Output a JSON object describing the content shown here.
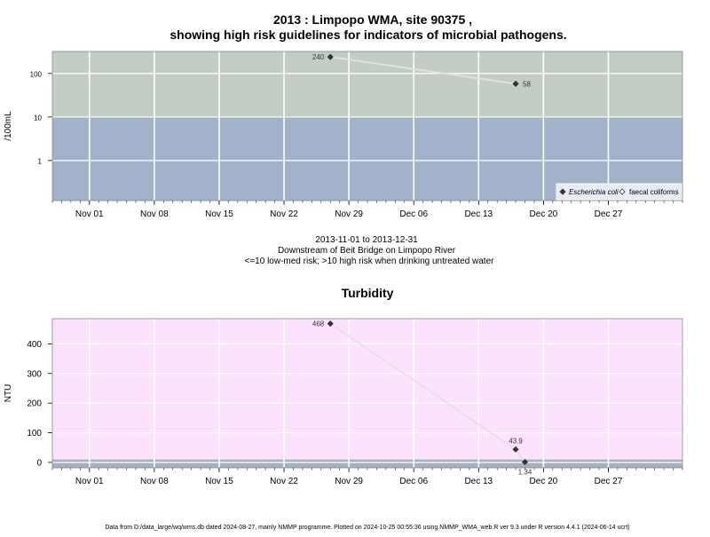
{
  "title_line1": "2013 : Limpopo WMA, site 90375 ,",
  "title_line2": "showing high risk guidelines for indicators of microbial pathogens.",
  "subtitle_lines": [
    "2013-11-01 to 2013-12-31",
    "Downstream of Beit Bridge on Limpopo River",
    "<=10 low-med risk; >10 high risk when drinking untreated water"
  ],
  "footer": "Data from D:/data_large/wq/wms.db dated 2024-08-27, mainly NMMP programme. Plotted on 2024-10-25 00:55:36 using NMMP_WMA_web.R ver 9.3 under R version 4.4.1 (2024-06-14 ucrt)",
  "colors": {
    "high_risk_band": "#c3cdc3",
    "low_risk_band": "#a2b2cb",
    "turbidity_band": "#fde2fd",
    "turbidity_low_band": "#a6b1bd",
    "grid": "#ffffff",
    "line": "#e2e2e2",
    "marker": "#333333"
  },
  "chart_data": [
    {
      "type": "scatter",
      "title": "",
      "xlabel": "",
      "ylabel": "/100mL",
      "yscale": "log",
      "ylim": [
        0.12,
        320
      ],
      "xlim": [
        "2013-10-28",
        "2014-01-04"
      ],
      "x_ticks": [
        "Nov 01",
        "Nov 08",
        "Nov 15",
        "Nov 22",
        "Nov 29",
        "Dec 06",
        "Dec 13",
        "Dec 20",
        "Dec 27"
      ],
      "y_ticks": [
        "1",
        "10",
        "100"
      ],
      "grid": true,
      "threshold": 10,
      "legend_position": "bottom-right",
      "series": [
        {
          "name": "Escherichia coli",
          "marker": "filled-diamond",
          "points": [
            {
              "x": "2013-11-27",
              "y": 240,
              "label": "240"
            },
            {
              "x": "2013-12-17",
              "y": 58,
              "label": "58"
            }
          ]
        },
        {
          "name": "faecal coliforms",
          "marker": "open-diamond",
          "points": []
        }
      ]
    },
    {
      "type": "scatter",
      "title": "Turbidity",
      "xlabel": "",
      "ylabel": "NTU",
      "ylim": [
        -18,
        485
      ],
      "xlim": [
        "2013-10-28",
        "2014-01-04"
      ],
      "x_ticks": [
        "Nov 01",
        "Nov 08",
        "Nov 15",
        "Nov 22",
        "Nov 29",
        "Dec 06",
        "Dec 13",
        "Dec 20",
        "Dec 27"
      ],
      "y_ticks": [
        "0",
        "100",
        "200",
        "300",
        "400"
      ],
      "grid": true,
      "threshold": 10,
      "series": [
        {
          "name": "",
          "marker": "filled-diamond",
          "points": [
            {
              "x": "2013-11-27",
              "y": 468,
              "label": "468"
            },
            {
              "x": "2013-12-17",
              "y": 43.9,
              "label": "43.9"
            },
            {
              "x": "2013-12-18",
              "y": 1.34,
              "label": "1.34"
            }
          ]
        }
      ]
    }
  ]
}
